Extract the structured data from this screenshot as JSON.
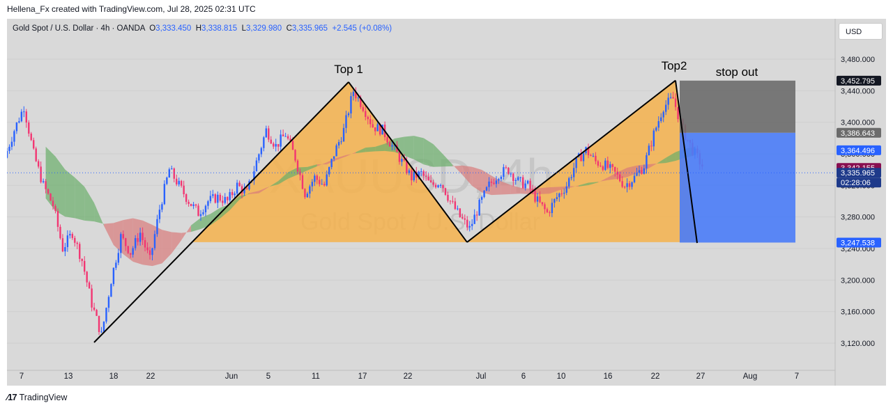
{
  "header": {
    "attribution": "Hellena_Fx created with TradingView.com, Jul 28, 2025 02:31 UTC"
  },
  "legend": {
    "symbol": "Gold Spot / U.S. Dollar · 4h · OANDA",
    "o_label": "O",
    "o": "3,333.450",
    "h_label": "H",
    "h": "3,338.815",
    "l_label": "L",
    "l": "3,329.980",
    "c_label": "C",
    "c": "3,335.965",
    "change": "+2.545 (+0.08%)"
  },
  "currency_button": "USD",
  "footer": {
    "brand": "TradingView"
  },
  "watermark": {
    "ticker": "XAUUSD, 4h",
    "name": "Gold Spot / U.S. Dollar"
  },
  "colors": {
    "pattern_fill": "#f5b14c",
    "cloud_green": "#6aae6a",
    "cloud_red": "#d97a7a",
    "candle_up": "#2962ff",
    "candle_down": "#f23672",
    "stop_zone": "#6b6b6b",
    "target_zone": "#4a7cf7"
  },
  "chart_data": {
    "type": "candlestick",
    "title": "Gold Spot / U.S. Dollar · 4h · OANDA",
    "timeframe": "4h",
    "ylim": [
      3090,
      3515
    ],
    "yticks": [
      3120,
      3160,
      3200,
      3240,
      3280,
      3320,
      3360,
      3400,
      3440,
      3480
    ],
    "ytick_labels": [
      "3,120.000",
      "3,160.000",
      "3,200.000",
      "3,240.000",
      "3,280.000",
      "3,320.000",
      "3,360.000",
      "3,400.000",
      "3,440.000",
      "3,480.000"
    ],
    "xticks": [
      "7",
      "13",
      "18",
      "22",
      "Jun",
      "5",
      "11",
      "17",
      "22",
      "Jul",
      "6",
      "10",
      "16",
      "22",
      "27",
      "Aug",
      "7"
    ],
    "price_labels": [
      {
        "text": "3,452.795",
        "value": 3452.795,
        "role": "stop"
      },
      {
        "text": "3,386.643",
        "value": 3386.643,
        "role": "entry"
      },
      {
        "text": "3,364.496",
        "value": 3364.496,
        "role": "recent"
      },
      {
        "text": "3,342.155",
        "value": 3342.155,
        "role": "cloud"
      },
      {
        "text": "3,335.965",
        "value": 3335.965,
        "role": "last"
      },
      {
        "text": "02:28:06",
        "role": "countdown"
      },
      {
        "text": "3,247.538",
        "value": 3247.538,
        "role": "target"
      }
    ],
    "annotations": [
      {
        "text": "Top 1"
      },
      {
        "text": "Top2"
      },
      {
        "text": "stop out"
      }
    ],
    "pattern_points": [
      {
        "name": "low",
        "date": "May 15",
        "price": 3121
      },
      {
        "name": "top1",
        "date": "Jun 13",
        "price": 3451
      },
      {
        "name": "trough",
        "date": "Jun 30",
        "price": 3248
      },
      {
        "name": "top2",
        "date": "Jul 23",
        "price": 3453
      },
      {
        "name": "target",
        "date": "Jul 24",
        "price": 3247
      }
    ],
    "short_position": {
      "stop": 3452.795,
      "entry": 3386.643,
      "target": 3247.538
    },
    "price_path": [
      [
        0,
        3355
      ],
      [
        2,
        3390
      ],
      [
        4,
        3420
      ],
      [
        6,
        3360
      ],
      [
        8,
        3320
      ],
      [
        10,
        3295
      ],
      [
        12,
        3240
      ],
      [
        14,
        3260
      ],
      [
        16,
        3225
      ],
      [
        18,
        3170
      ],
      [
        20,
        3130
      ],
      [
        22,
        3200
      ],
      [
        24,
        3255
      ],
      [
        26,
        3235
      ],
      [
        28,
        3260
      ],
      [
        30,
        3225
      ],
      [
        32,
        3290
      ],
      [
        34,
        3340
      ],
      [
        36,
        3320
      ],
      [
        38,
        3300
      ],
      [
        40,
        3285
      ],
      [
        42,
        3300
      ],
      [
        44,
        3305
      ],
      [
        46,
        3300
      ],
      [
        48,
        3320
      ],
      [
        50,
        3310
      ],
      [
        52,
        3350
      ],
      [
        54,
        3390
      ],
      [
        56,
        3370
      ],
      [
        58,
        3385
      ],
      [
        60,
        3355
      ],
      [
        62,
        3310
      ],
      [
        64,
        3330
      ],
      [
        66,
        3320
      ],
      [
        68,
        3360
      ],
      [
        70,
        3390
      ],
      [
        72,
        3440
      ],
      [
        74,
        3420
      ],
      [
        76,
        3395
      ],
      [
        78,
        3390
      ],
      [
        80,
        3370
      ],
      [
        82,
        3350
      ],
      [
        84,
        3330
      ],
      [
        86,
        3335
      ],
      [
        88,
        3320
      ],
      [
        90,
        3325
      ],
      [
        92,
        3300
      ],
      [
        94,
        3280
      ],
      [
        96,
        3265
      ],
      [
        98,
        3295
      ],
      [
        100,
        3320
      ],
      [
        102,
        3335
      ],
      [
        104,
        3340
      ],
      [
        106,
        3325
      ],
      [
        108,
        3320
      ],
      [
        110,
        3300
      ],
      [
        112,
        3285
      ],
      [
        114,
        3305
      ],
      [
        116,
        3320
      ],
      [
        118,
        3350
      ],
      [
        120,
        3365
      ],
      [
        122,
        3350
      ],
      [
        124,
        3345
      ],
      [
        126,
        3335
      ],
      [
        128,
        3320
      ],
      [
        130,
        3330
      ],
      [
        132,
        3345
      ],
      [
        134,
        3385
      ],
      [
        136,
        3420
      ],
      [
        138,
        3430
      ],
      [
        140,
        3390
      ],
      [
        142,
        3365
      ],
      [
        144,
        3345
      ],
      [
        146,
        3336
      ]
    ],
    "x_range": [
      0,
      165
    ]
  }
}
